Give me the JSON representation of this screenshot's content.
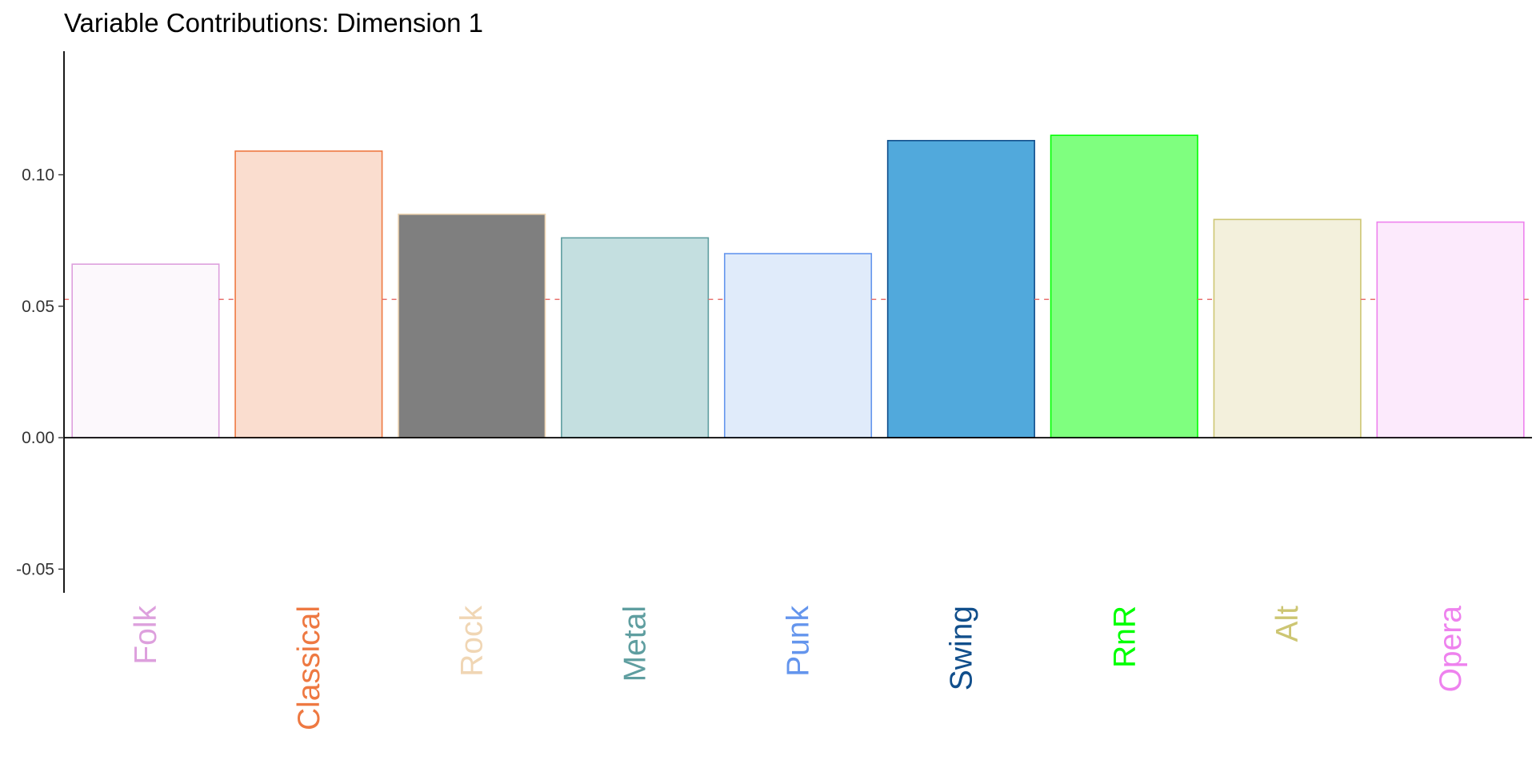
{
  "chart_data": {
    "type": "bar",
    "title": "Variable Contributions: Dimension 1",
    "xlabel": "",
    "ylabel": "",
    "categories": [
      "Folk",
      "Classical",
      "Rock",
      "Metal",
      "Punk",
      "Swing",
      "RnR",
      "Alt",
      "Opera"
    ],
    "values": [
      0.066,
      0.109,
      0.085,
      0.076,
      0.07,
      0.113,
      0.115,
      0.083,
      0.082
    ],
    "ylim": [
      -0.059,
      0.147
    ],
    "yticks": [
      -0.05,
      0.0,
      0.05,
      0.1
    ],
    "ytick_labels": [
      "-0.05",
      "0.00",
      "0.05",
      "0.10"
    ],
    "reference_line": {
      "value": 0.0526,
      "style": "dashed",
      "color": "#E8716E"
    },
    "grid": false,
    "legend": "none",
    "colors": {
      "fills": [
        "#FCF8FC",
        "#FADDCF",
        "#7F7F7F",
        "#C4DFE0",
        "#E0EBFA",
        "#51A9DC",
        "#7FFF7F",
        "#F3F0DC",
        "#FCEAFC"
      ],
      "outlines": [
        "#DDA0DD",
        "#EE7942",
        "#F0D6B4",
        "#5F9EA0",
        "#6495ED",
        "#104E8B",
        "#00FF00",
        "#CDC673",
        "#EE82EE"
      ],
      "labels": [
        "#DDA0DD",
        "#EE7942",
        "#F0D6B4",
        "#5F9EA0",
        "#6495ED",
        "#104E8B",
        "#00FF00",
        "#CDC673",
        "#EE82EE"
      ]
    }
  }
}
